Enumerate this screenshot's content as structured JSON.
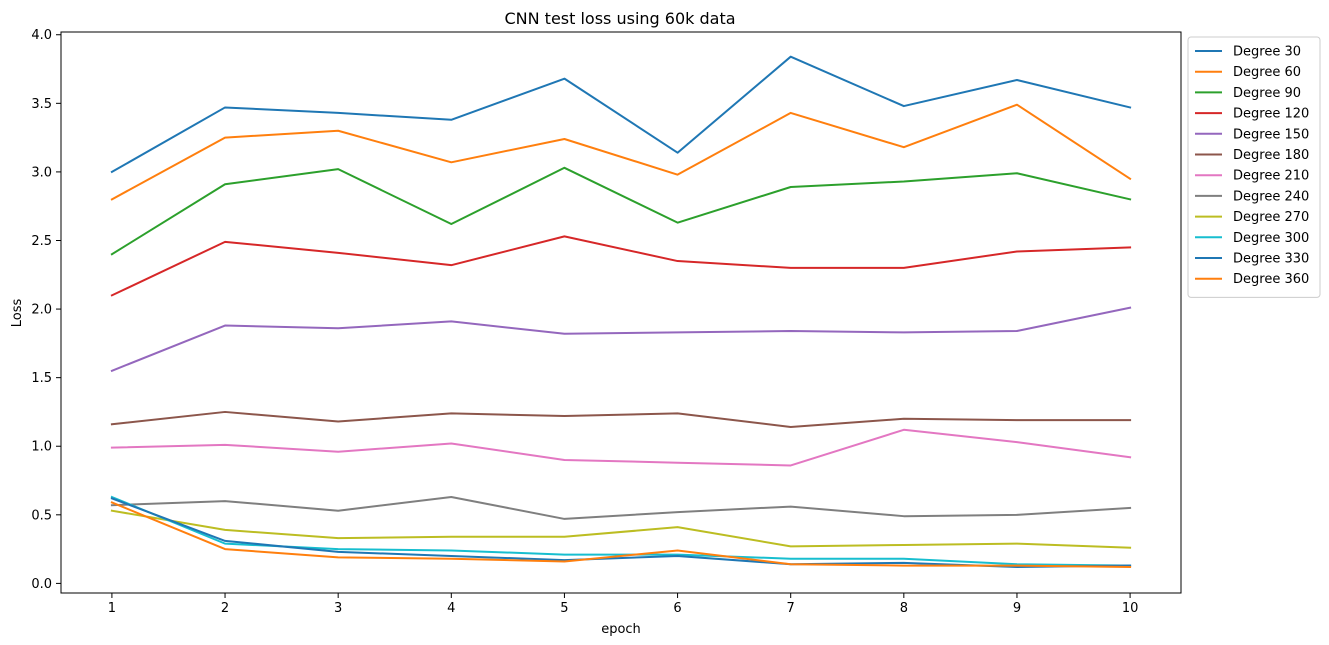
{
  "chart_data": {
    "type": "line",
    "title": "CNN test loss using 60k data",
    "xlabel": "epoch",
    "ylabel": "Loss",
    "x": [
      1,
      2,
      3,
      4,
      5,
      6,
      7,
      8,
      9,
      10
    ],
    "xticks": [
      "1",
      "2",
      "3",
      "4",
      "5",
      "6",
      "7",
      "8",
      "9",
      "10"
    ],
    "yticks": [
      "0.0",
      "0.5",
      "1.0",
      "1.5",
      "2.0",
      "2.5",
      "3.0",
      "3.5",
      "4.0"
    ],
    "ylim": [
      -0.07,
      4.02
    ],
    "xlim": [
      0.55,
      10.45
    ],
    "grid": false,
    "legend_placement": "outside top-right",
    "series": [
      {
        "name": "Degree 30",
        "color": "#1f77b4",
        "values": [
          3.0,
          3.47,
          3.43,
          3.38,
          3.68,
          3.14,
          3.84,
          3.48,
          3.67,
          3.47
        ]
      },
      {
        "name": "Degree 60",
        "color": "#ff7f0e",
        "values": [
          2.8,
          3.25,
          3.3,
          3.07,
          3.24,
          2.98,
          3.43,
          3.18,
          3.49,
          2.95
        ]
      },
      {
        "name": "Degree 90",
        "color": "#2ca02c",
        "values": [
          2.4,
          2.91,
          3.02,
          2.62,
          3.03,
          2.63,
          2.89,
          2.93,
          2.99,
          2.8
        ]
      },
      {
        "name": "Degree 120",
        "color": "#d62728",
        "values": [
          2.1,
          2.49,
          2.41,
          2.32,
          2.53,
          2.35,
          2.3,
          2.3,
          2.42,
          2.45
        ]
      },
      {
        "name": "Degree 150",
        "color": "#9467bd",
        "values": [
          1.55,
          1.88,
          1.86,
          1.91,
          1.82,
          1.83,
          1.84,
          1.83,
          1.84,
          2.01
        ]
      },
      {
        "name": "Degree 180",
        "color": "#8c564b",
        "values": [
          1.16,
          1.25,
          1.18,
          1.24,
          1.22,
          1.24,
          1.14,
          1.2,
          1.19,
          1.19
        ]
      },
      {
        "name": "Degree 210",
        "color": "#e377c2",
        "values": [
          0.99,
          1.01,
          0.96,
          1.02,
          0.9,
          0.88,
          0.86,
          1.12,
          1.03,
          0.92
        ]
      },
      {
        "name": "Degree 240",
        "color": "#7f7f7f",
        "values": [
          0.57,
          0.6,
          0.53,
          0.63,
          0.47,
          0.52,
          0.56,
          0.49,
          0.5,
          0.55
        ]
      },
      {
        "name": "Degree 270",
        "color": "#bcbd22",
        "values": [
          0.53,
          0.39,
          0.33,
          0.34,
          0.34,
          0.41,
          0.27,
          0.28,
          0.29,
          0.26
        ]
      },
      {
        "name": "Degree 300",
        "color": "#17becf",
        "values": [
          0.63,
          0.29,
          0.25,
          0.24,
          0.21,
          0.21,
          0.18,
          0.18,
          0.14,
          0.13
        ]
      },
      {
        "name": "Degree 330",
        "color": "#1f77b4",
        "values": [
          0.62,
          0.31,
          0.23,
          0.2,
          0.17,
          0.2,
          0.14,
          0.15,
          0.12,
          0.13
        ]
      },
      {
        "name": "Degree 360",
        "color": "#ff7f0e",
        "values": [
          0.59,
          0.25,
          0.19,
          0.18,
          0.16,
          0.24,
          0.14,
          0.13,
          0.13,
          0.12
        ]
      }
    ]
  }
}
